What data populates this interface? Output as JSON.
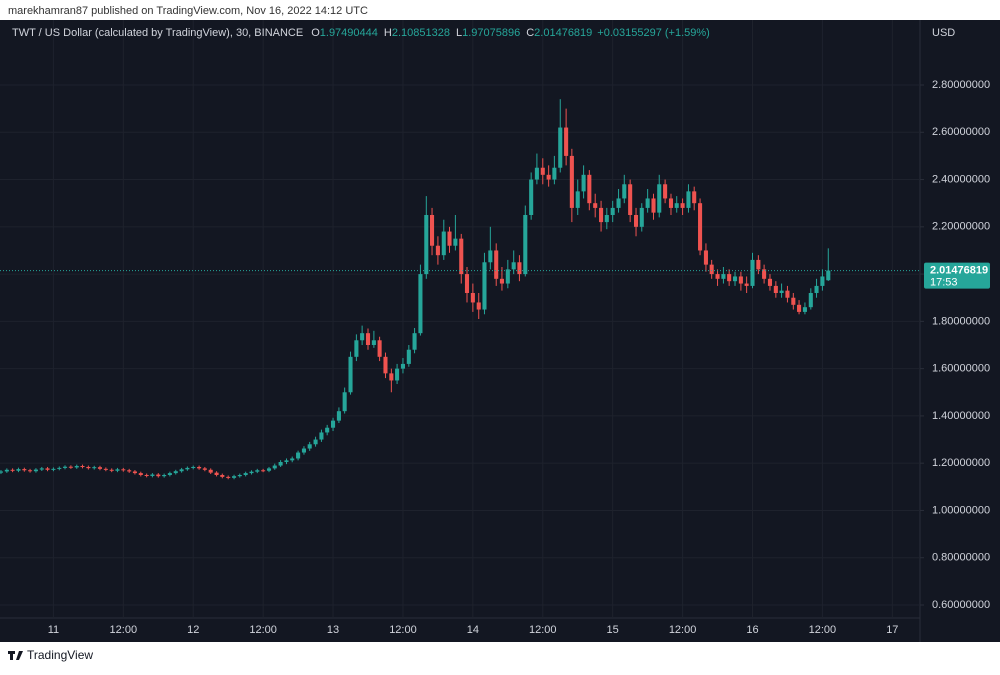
{
  "header": {
    "publisher": "marekhamran87 published on TradingView.com, Nov 16, 2022 14:12 UTC"
  },
  "footer": {
    "brand": "TradingView"
  },
  "chart_data": {
    "type": "candlestick",
    "title": "TWT / US Dollar (calculated by TradingView), 30, BINANCE",
    "ohlc_legend": [
      {
        "label": "O",
        "value": 1.97490444
      },
      {
        "label": "H",
        "value": 2.10851328
      },
      {
        "label": "L",
        "value": 1.97075896
      },
      {
        "label": "C",
        "value": 2.01476819
      }
    ],
    "change_label": "+0.03155297 (+1.59%)",
    "y_axis_label": "USD",
    "last_price": 2.01476819,
    "countdown": "17:53",
    "up_color": "#26a69a",
    "down_color": "#ef5350",
    "background": "#131722",
    "xlim": [
      10.618,
      17.198
    ],
    "xticks": [
      {
        "value": 11,
        "label": "11"
      },
      {
        "value": 11.5,
        "label": "12:00"
      },
      {
        "value": 12,
        "label": "12"
      },
      {
        "value": 12.5,
        "label": "12:00"
      },
      {
        "value": 13,
        "label": "13"
      },
      {
        "value": 13.5,
        "label": "12:00"
      },
      {
        "value": 14,
        "label": "14"
      },
      {
        "value": 14.5,
        "label": "12:00"
      },
      {
        "value": 15,
        "label": "15"
      },
      {
        "value": 15.5,
        "label": "12:00"
      },
      {
        "value": 16,
        "label": "16"
      },
      {
        "value": 16.5,
        "label": "12:00"
      },
      {
        "value": 17,
        "label": "17"
      }
    ],
    "ylim": [
      0.545,
      3.075
    ],
    "yticks": [
      {
        "value": 0.6,
        "label": "0.60000000"
      },
      {
        "value": 0.8,
        "label": "0.80000000"
      },
      {
        "value": 1.0,
        "label": "1.00000000"
      },
      {
        "value": 1.2,
        "label": "1.20000000"
      },
      {
        "value": 1.4,
        "label": "1.40000000"
      },
      {
        "value": 1.6,
        "label": "1.60000000"
      },
      {
        "value": 1.8,
        "label": "1.80000000"
      },
      {
        "value": 2.0,
        "label": "2.00000000"
      },
      {
        "value": 2.2,
        "label": "2.20000000"
      },
      {
        "value": 2.4,
        "label": "2.40000000"
      },
      {
        "value": 2.6,
        "label": "2.60000000"
      },
      {
        "value": 2.8,
        "label": "2.80000000"
      }
    ],
    "x": [
      10.625,
      10.667,
      10.708,
      10.75,
      10.792,
      10.833,
      10.875,
      10.917,
      10.958,
      11,
      11.042,
      11.083,
      11.125,
      11.167,
      11.208,
      11.25,
      11.292,
      11.333,
      11.375,
      11.417,
      11.458,
      11.5,
      11.542,
      11.583,
      11.625,
      11.667,
      11.708,
      11.75,
      11.792,
      11.833,
      11.875,
      11.917,
      11.958,
      12,
      12.042,
      12.083,
      12.125,
      12.167,
      12.208,
      12.25,
      12.292,
      12.333,
      12.375,
      12.417,
      12.458,
      12.5,
      12.542,
      12.583,
      12.625,
      12.667,
      12.708,
      12.75,
      12.792,
      12.833,
      12.875,
      12.917,
      12.958,
      13,
      13.042,
      13.083,
      13.125,
      13.167,
      13.208,
      13.25,
      13.292,
      13.333,
      13.375,
      13.417,
      13.458,
      13.5,
      13.542,
      13.583,
      13.625,
      13.667,
      13.708,
      13.75,
      13.792,
      13.833,
      13.875,
      13.917,
      13.958,
      14,
      14.042,
      14.083,
      14.125,
      14.167,
      14.208,
      14.25,
      14.292,
      14.333,
      14.375,
      14.417,
      14.458,
      14.5,
      14.542,
      14.583,
      14.625,
      14.667,
      14.708,
      14.75,
      14.792,
      14.833,
      14.875,
      14.917,
      14.958,
      15,
      15.042,
      15.083,
      15.125,
      15.167,
      15.208,
      15.25,
      15.292,
      15.333,
      15.375,
      15.417,
      15.458,
      15.5,
      15.542,
      15.583,
      15.625,
      15.667,
      15.708,
      15.75,
      15.792,
      15.833,
      15.875,
      15.917,
      15.958,
      16,
      16.042,
      16.083,
      16.125,
      16.167,
      16.208,
      16.25,
      16.292,
      16.333,
      16.375,
      16.417,
      16.458,
      16.5,
      16.542
    ],
    "ohlc": [
      [
        1.16,
        1.171,
        1.154,
        1.165
      ],
      [
        1.165,
        1.178,
        1.159,
        1.172
      ],
      [
        1.172,
        1.178,
        1.162,
        1.168
      ],
      [
        1.168,
        1.181,
        1.162,
        1.175
      ],
      [
        1.175,
        1.181,
        1.164,
        1.17
      ],
      [
        1.17,
        1.176,
        1.16,
        1.166
      ],
      [
        1.166,
        1.179,
        1.16,
        1.173
      ],
      [
        1.173,
        1.184,
        1.167,
        1.178
      ],
      [
        1.178,
        1.184,
        1.166,
        1.172
      ],
      [
        1.172,
        1.182,
        1.166,
        1.176
      ],
      [
        1.176,
        1.186,
        1.17,
        1.18
      ],
      [
        1.18,
        1.191,
        1.174,
        1.185
      ],
      [
        1.185,
        1.191,
        1.176,
        1.182
      ],
      [
        1.182,
        1.194,
        1.176,
        1.188
      ],
      [
        1.188,
        1.194,
        1.178,
        1.184
      ],
      [
        1.184,
        1.19,
        1.173,
        1.179
      ],
      [
        1.179,
        1.189,
        1.173,
        1.183
      ],
      [
        1.183,
        1.189,
        1.17,
        1.176
      ],
      [
        1.176,
        1.182,
        1.166,
        1.172
      ],
      [
        1.172,
        1.178,
        1.162,
        1.168
      ],
      [
        1.168,
        1.18,
        1.162,
        1.174
      ],
      [
        1.174,
        1.18,
        1.164,
        1.17
      ],
      [
        1.17,
        1.176,
        1.159,
        1.165
      ],
      [
        1.165,
        1.171,
        1.152,
        1.158
      ],
      [
        1.158,
        1.164,
        1.144,
        1.15
      ],
      [
        1.15,
        1.156,
        1.14,
        1.146
      ],
      [
        1.146,
        1.158,
        1.14,
        1.152
      ],
      [
        1.152,
        1.158,
        1.139,
        1.145
      ],
      [
        1.145,
        1.156,
        1.139,
        1.15
      ],
      [
        1.15,
        1.164,
        1.144,
        1.158
      ],
      [
        1.158,
        1.172,
        1.152,
        1.166
      ],
      [
        1.166,
        1.18,
        1.16,
        1.174
      ],
      [
        1.174,
        1.186,
        1.168,
        1.18
      ],
      [
        1.18,
        1.19,
        1.174,
        1.184
      ],
      [
        1.184,
        1.19,
        1.172,
        1.178
      ],
      [
        1.178,
        1.184,
        1.166,
        1.172
      ],
      [
        1.172,
        1.178,
        1.154,
        1.16
      ],
      [
        1.16,
        1.166,
        1.144,
        1.15
      ],
      [
        1.15,
        1.156,
        1.136,
        1.142
      ],
      [
        1.142,
        1.148,
        1.132,
        1.138
      ],
      [
        1.138,
        1.151,
        1.132,
        1.145
      ],
      [
        1.145,
        1.156,
        1.139,
        1.15
      ],
      [
        1.15,
        1.164,
        1.144,
        1.158
      ],
      [
        1.158,
        1.17,
        1.152,
        1.164
      ],
      [
        1.164,
        1.176,
        1.158,
        1.17
      ],
      [
        1.17,
        1.176,
        1.162,
        1.168
      ],
      [
        1.168,
        1.184,
        1.162,
        1.178
      ],
      [
        1.178,
        1.198,
        1.172,
        1.19
      ],
      [
        1.19,
        1.213,
        1.184,
        1.205
      ],
      [
        1.205,
        1.22,
        1.196,
        1.212
      ],
      [
        1.212,
        1.228,
        1.204,
        1.22
      ],
      [
        1.22,
        1.253,
        1.212,
        1.245
      ],
      [
        1.245,
        1.272,
        1.236,
        1.262
      ],
      [
        1.262,
        1.29,
        1.252,
        1.28
      ],
      [
        1.28,
        1.312,
        1.27,
        1.3
      ],
      [
        1.3,
        1.342,
        1.29,
        1.33
      ],
      [
        1.33,
        1.362,
        1.318,
        1.35
      ],
      [
        1.35,
        1.392,
        1.336,
        1.38
      ],
      [
        1.38,
        1.436,
        1.37,
        1.42
      ],
      [
        1.42,
        1.52,
        1.41,
        1.5
      ],
      [
        1.5,
        1.672,
        1.49,
        1.65
      ],
      [
        1.65,
        1.745,
        1.632,
        1.72
      ],
      [
        1.72,
        1.782,
        1.7,
        1.75
      ],
      [
        1.75,
        1.77,
        1.68,
        1.7
      ],
      [
        1.7,
        1.76,
        1.688,
        1.72
      ],
      [
        1.72,
        1.735,
        1.632,
        1.65
      ],
      [
        1.65,
        1.668,
        1.56,
        1.58
      ],
      [
        1.58,
        1.6,
        1.5,
        1.55
      ],
      [
        1.55,
        1.62,
        1.535,
        1.6
      ],
      [
        1.6,
        1.645,
        1.58,
        1.62
      ],
      [
        1.62,
        1.7,
        1.608,
        1.68
      ],
      [
        1.68,
        1.772,
        1.665,
        1.75
      ],
      [
        1.75,
        2.04,
        1.74,
        2.0
      ],
      [
        2.0,
        2.33,
        1.98,
        2.25
      ],
      [
        2.25,
        2.28,
        2.08,
        2.12
      ],
      [
        2.12,
        2.16,
        2.04,
        2.08
      ],
      [
        2.08,
        2.23,
        2.06,
        2.18
      ],
      [
        2.18,
        2.2,
        2.09,
        2.12
      ],
      [
        2.12,
        2.25,
        2.1,
        2.15
      ],
      [
        2.15,
        2.17,
        1.96,
        2.0
      ],
      [
        2.0,
        2.03,
        1.88,
        1.92
      ],
      [
        1.92,
        1.96,
        1.84,
        1.88
      ],
      [
        1.88,
        1.92,
        1.81,
        1.85
      ],
      [
        1.85,
        2.09,
        1.83,
        2.05
      ],
      [
        2.05,
        2.2,
        2.02,
        2.1
      ],
      [
        2.1,
        2.13,
        1.95,
        1.98
      ],
      [
        1.98,
        2.03,
        1.93,
        1.96
      ],
      [
        1.96,
        2.06,
        1.94,
        2.02
      ],
      [
        2.02,
        2.1,
        2.0,
        2.05
      ],
      [
        2.05,
        2.08,
        1.97,
        2.0
      ],
      [
        2.0,
        2.29,
        1.99,
        2.25
      ],
      [
        2.25,
        2.43,
        2.23,
        2.4
      ],
      [
        2.4,
        2.51,
        2.38,
        2.45
      ],
      [
        2.45,
        2.49,
        2.38,
        2.42
      ],
      [
        2.42,
        2.46,
        2.37,
        2.4
      ],
      [
        2.4,
        2.5,
        2.38,
        2.45
      ],
      [
        2.45,
        2.74,
        2.43,
        2.62
      ],
      [
        2.62,
        2.7,
        2.46,
        2.5
      ],
      [
        2.5,
        2.53,
        2.22,
        2.28
      ],
      [
        2.28,
        2.4,
        2.25,
        2.35
      ],
      [
        2.35,
        2.46,
        2.32,
        2.42
      ],
      [
        2.42,
        2.44,
        2.27,
        2.3
      ],
      [
        2.3,
        2.34,
        2.24,
        2.28
      ],
      [
        2.28,
        2.31,
        2.18,
        2.22
      ],
      [
        2.22,
        2.28,
        2.19,
        2.25
      ],
      [
        2.25,
        2.31,
        2.22,
        2.28
      ],
      [
        2.28,
        2.36,
        2.26,
        2.32
      ],
      [
        2.32,
        2.42,
        2.3,
        2.38
      ],
      [
        2.38,
        2.4,
        2.22,
        2.25
      ],
      [
        2.25,
        2.28,
        2.16,
        2.2
      ],
      [
        2.2,
        2.3,
        2.18,
        2.28
      ],
      [
        2.28,
        2.36,
        2.26,
        2.32
      ],
      [
        2.32,
        2.34,
        2.23,
        2.26
      ],
      [
        2.26,
        2.42,
        2.24,
        2.38
      ],
      [
        2.38,
        2.4,
        2.3,
        2.32
      ],
      [
        2.32,
        2.34,
        2.25,
        2.28
      ],
      [
        2.28,
        2.33,
        2.26,
        2.3
      ],
      [
        2.3,
        2.32,
        2.25,
        2.28
      ],
      [
        2.28,
        2.38,
        2.26,
        2.35
      ],
      [
        2.35,
        2.37,
        2.27,
        2.3
      ],
      [
        2.3,
        2.32,
        2.08,
        2.1
      ],
      [
        2.1,
        2.13,
        2.01,
        2.04
      ],
      [
        2.04,
        2.06,
        1.98,
        2.0
      ],
      [
        2.0,
        2.02,
        1.95,
        1.98
      ],
      [
        1.98,
        2.03,
        1.96,
        2.0
      ],
      [
        2.0,
        2.02,
        1.95,
        1.97
      ],
      [
        1.97,
        2.01,
        1.95,
        1.99
      ],
      [
        1.99,
        2.01,
        1.93,
        1.96
      ],
      [
        1.96,
        1.99,
        1.92,
        1.95
      ],
      [
        1.95,
        2.09,
        1.94,
        2.06
      ],
      [
        2.06,
        2.08,
        2.0,
        2.02
      ],
      [
        2.02,
        2.04,
        1.96,
        1.98
      ],
      [
        1.98,
        2.0,
        1.93,
        1.95
      ],
      [
        1.95,
        1.97,
        1.9,
        1.92
      ],
      [
        1.92,
        1.96,
        1.9,
        1.93
      ],
      [
        1.93,
        1.95,
        1.88,
        1.9
      ],
      [
        1.9,
        1.92,
        1.85,
        1.87
      ],
      [
        1.87,
        1.89,
        1.83,
        1.84
      ],
      [
        1.84,
        1.88,
        1.83,
        1.86
      ],
      [
        1.86,
        1.94,
        1.85,
        1.92
      ],
      [
        1.92,
        1.98,
        1.9,
        1.95
      ],
      [
        1.95,
        2.02,
        1.93,
        1.99
      ],
      [
        1.974,
        2.109,
        1.971,
        2.015
      ]
    ]
  }
}
